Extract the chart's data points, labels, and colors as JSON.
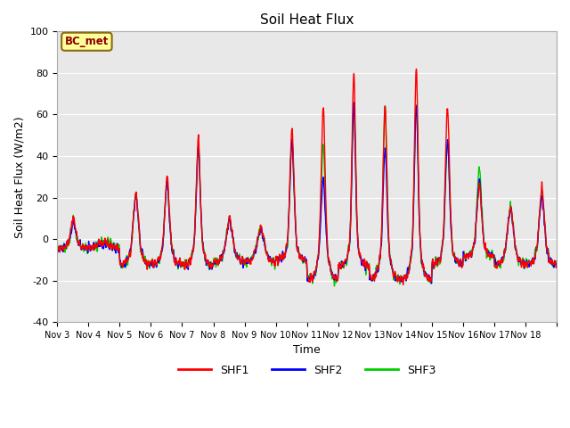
{
  "title": "Soil Heat Flux",
  "xlabel": "Time",
  "ylabel": "Soil Heat Flux (W/m2)",
  "ylim": [
    -40,
    100
  ],
  "yticks": [
    -40,
    -20,
    0,
    20,
    40,
    60,
    80,
    100
  ],
  "background_color": "#ffffff",
  "plot_bg_color": "#e8e8e8",
  "series": [
    "SHF1",
    "SHF2",
    "SHF3"
  ],
  "colors": [
    "#ff0000",
    "#0000ff",
    "#00cc00"
  ],
  "linewidths": [
    1.0,
    1.0,
    1.0
  ],
  "legend_label": "BC_met",
  "legend_box_color": "#ffff99",
  "legend_box_edge": "#8B6914",
  "x_tick_labels": [
    "Nov 3",
    "Nov 4",
    "Nov 5",
    "Nov 6",
    "Nov 7",
    "Nov 8",
    "Nov 9",
    "Nov 10",
    "Nov 11",
    "Nov 12",
    "Nov 13",
    "Nov 14",
    "Nov 15",
    "Nov 16",
    "Nov 17",
    "Nov 18"
  ],
  "n_days": 16,
  "points_per_day": 144,
  "day_peaks_shf1": [
    10,
    -2,
    22,
    30,
    48,
    10,
    5,
    52,
    62,
    79,
    64,
    82,
    62,
    25,
    15,
    24
  ],
  "day_peaks_shf2": [
    8,
    -3,
    20,
    27,
    43,
    9,
    4,
    46,
    28,
    65,
    44,
    65,
    47,
    27,
    14,
    20
  ],
  "day_peaks_shf3": [
    9,
    -2,
    21,
    28,
    44,
    10,
    5,
    46,
    45,
    65,
    64,
    65,
    47,
    34,
    15,
    22
  ],
  "day_troughs": [
    -8,
    -8,
    -22,
    -22,
    -23,
    -20,
    -20,
    -18,
    -35,
    -24,
    -35,
    -35,
    -22,
    -15,
    -22,
    -22
  ],
  "peak_phase": [
    0.52,
    0.5,
    0.52,
    0.52,
    0.52,
    0.52,
    0.52,
    0.52,
    0.52,
    0.5,
    0.5,
    0.5,
    0.5,
    0.52,
    0.52,
    0.52
  ],
  "peak_width": [
    0.008,
    0.012,
    0.01,
    0.008,
    0.007,
    0.01,
    0.012,
    0.008,
    0.007,
    0.006,
    0.006,
    0.006,
    0.008,
    0.01,
    0.012,
    0.01
  ]
}
